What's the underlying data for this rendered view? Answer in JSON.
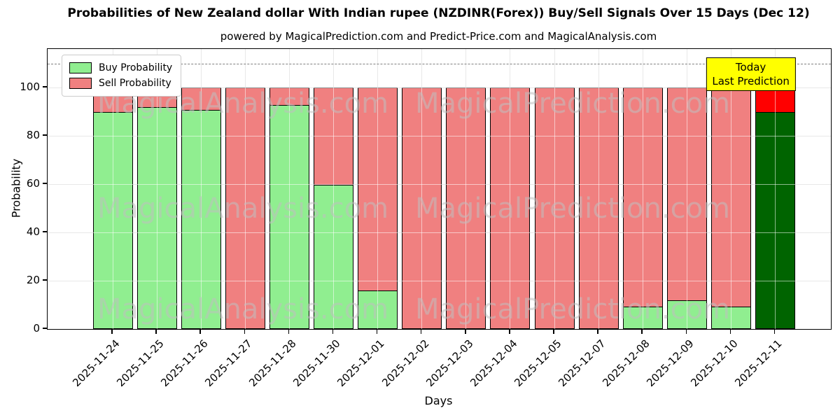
{
  "chart_data": {
    "type": "bar",
    "stacked": true,
    "title": "Probabilities of New Zealand dollar With Indian rupee (NZDINR(Forex)) Buy/Sell Signals Over 15 Days (Dec 12)",
    "subtitle": "powered by MagicalPrediction.com and Predict-Price.com and MagicalAnalysis.com",
    "xlabel": "Days",
    "ylabel": "Probability",
    "categories": [
      "2025-11-24",
      "2025-11-25",
      "2025-11-26",
      "2025-11-27",
      "2025-11-28",
      "2025-11-30",
      "2025-12-01",
      "2025-12-02",
      "2025-12-03",
      "2025-12-04",
      "2025-12-05",
      "2025-12-07",
      "2025-12-08",
      "2025-12-09",
      "2025-12-10",
      "2025-12-11"
    ],
    "series": [
      {
        "name": "Buy Probability",
        "color": "#90EE90",
        "values": [
          90,
          92,
          91,
          0,
          93,
          60,
          16,
          0,
          0,
          0,
          0,
          0,
          9.5,
          12,
          9.5,
          90
        ]
      },
      {
        "name": "Sell Probability",
        "color": "#F08080",
        "values": [
          10,
          8,
          9,
          100,
          7,
          40,
          84,
          100,
          100,
          100,
          100,
          100,
          90.5,
          88,
          90.5,
          10
        ]
      }
    ],
    "today_index": 15,
    "today_colors": {
      "buy": "#006400",
      "sell": "#FF0000"
    },
    "annotation": {
      "line1": "Today",
      "line2": "Last Prediction",
      "bg": "#FFFF00"
    },
    "yticks": [
      0,
      20,
      40,
      60,
      80,
      100
    ],
    "ylim": [
      0,
      116
    ],
    "dashed_line_y": 110,
    "grid": true,
    "legend_position": "upper left",
    "watermarks": [
      "MagicalAnalysis.com",
      "MagicalPrediction.com"
    ]
  }
}
